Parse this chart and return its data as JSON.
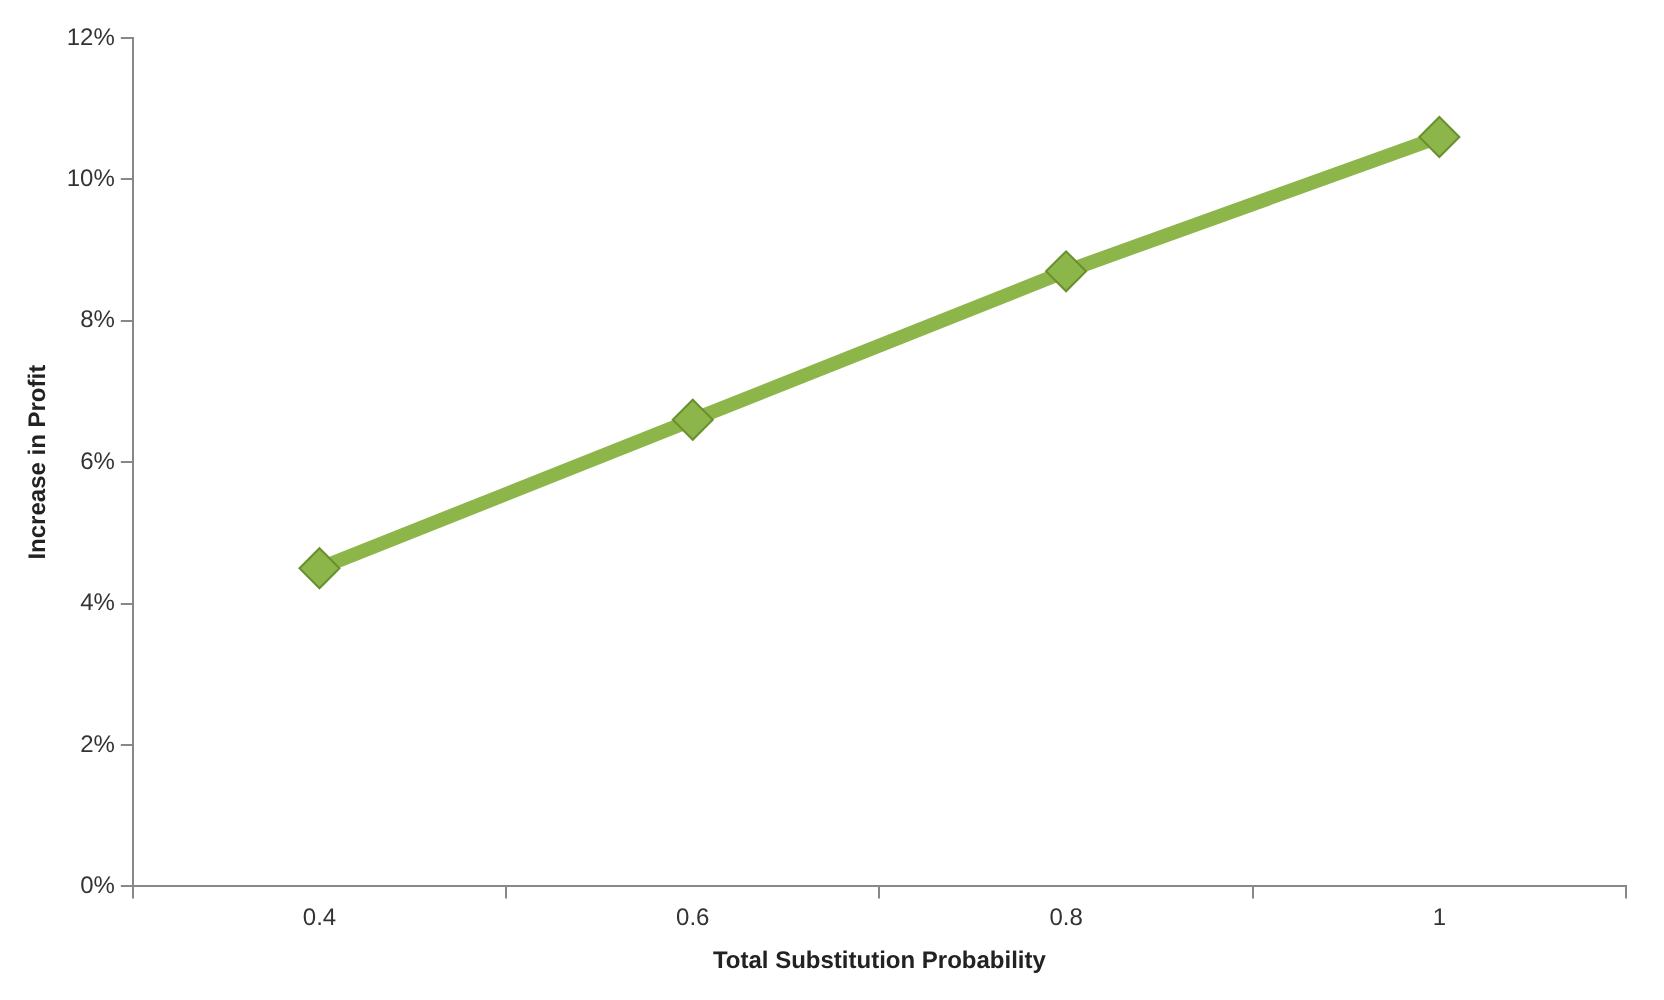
{
  "chart_data": {
    "type": "line",
    "xlabel": "Total Substitution Probability",
    "ylabel": "Increase in Profit",
    "categories": [
      "0.4",
      "0.6",
      "0.8",
      "1"
    ],
    "series": [
      {
        "color": "#8db64a",
        "values": [
          4.5,
          6.6,
          8.7,
          10.6
        ]
      }
    ],
    "ylim": [
      0,
      12
    ],
    "yticks": [
      {
        "value": 0,
        "label": "0%"
      },
      {
        "value": 2,
        "label": "2%"
      },
      {
        "value": 4,
        "label": "4%"
      },
      {
        "value": 6,
        "label": "6%"
      },
      {
        "value": 8,
        "label": "8%"
      },
      {
        "value": 10,
        "label": "10%"
      },
      {
        "value": 12,
        "label": "12%"
      }
    ],
    "grid": false,
    "legend": false,
    "marker": "diamond",
    "line_style": "solid"
  }
}
